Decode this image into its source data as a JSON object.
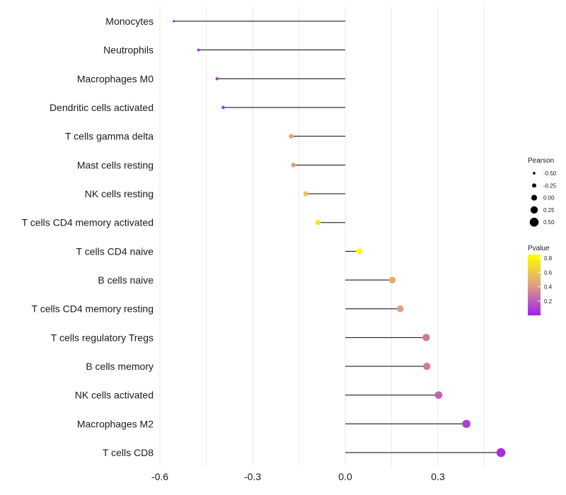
{
  "chart_data": {
    "type": "lollipop",
    "title": "",
    "xlabel": "",
    "ylabel": "",
    "xlim": [
      -0.6,
      0.5
    ],
    "x_ticks": [
      -0.6,
      -0.3,
      0.0,
      0.3
    ],
    "x_tick_labels": [
      "-0.6",
      "-0.3",
      "0.0",
      "0.3"
    ],
    "grid": true,
    "categories": [
      "Monocytes",
      "Neutrophils",
      "Macrophages M0",
      "Dendritic cells activated",
      "T cells gamma delta",
      "Mast cells resting",
      "NK cells resting",
      "T cells CD4 memory activated",
      "T cells CD4 naive",
      "B cells naive",
      "T cells CD4 memory resting",
      "T cells regulatory  Tregs ",
      "B cells memory",
      "NK cells activated",
      "Macrophages M2",
      "T cells CD8"
    ],
    "pearson": [
      -0.555,
      -0.475,
      -0.415,
      -0.395,
      -0.175,
      -0.168,
      -0.128,
      -0.088,
      0.045,
      0.152,
      0.178,
      0.262,
      0.264,
      0.302,
      0.392,
      0.504
    ],
    "pvalue": [
      0.02,
      0.05,
      0.08,
      0.07,
      0.45,
      0.44,
      0.58,
      0.72,
      0.85,
      0.48,
      0.42,
      0.3,
      0.3,
      0.22,
      0.1,
      0.04
    ],
    "size_legend": {
      "title": "Pearson",
      "values": [
        -0.5,
        -0.25,
        0.0,
        0.25,
        0.5
      ],
      "labels": [
        "-0.50",
        "-0.25",
        "0.00",
        "0.25",
        "0.50"
      ]
    },
    "color_legend": {
      "title": "Pvalue",
      "range": [
        0.0,
        0.85
      ],
      "ticks": [
        0.2,
        0.4,
        0.6,
        0.8
      ],
      "tick_labels": [
        "0.2",
        "0.4",
        "0.6",
        "0.8"
      ],
      "low_color": "#a020f0",
      "mid_color": "#e0a080",
      "high_color": "#ffff00"
    },
    "stem_color": "#000000",
    "legend_position": "right"
  }
}
